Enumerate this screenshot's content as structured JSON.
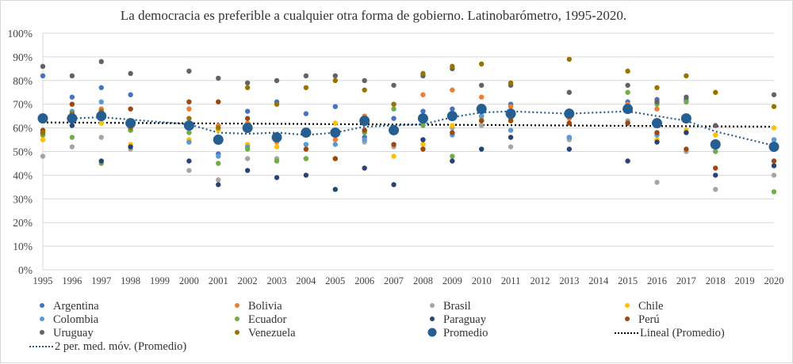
{
  "chart_data": {
    "type": "scatter",
    "title": "La democracia es preferible a cualquier otra forma de gobierno. Latinobarómetro, 1995-2020.",
    "xlabel": "",
    "ylabel": "",
    "ylim": [
      0,
      100
    ],
    "yticks": [
      "0%",
      "10%",
      "20%",
      "30%",
      "40%",
      "50%",
      "60%",
      "70%",
      "80%",
      "90%",
      "100%"
    ],
    "x": [
      "1995",
      "1996",
      "1997",
      "1998",
      "1999",
      "2000",
      "2001",
      "2002",
      "2003",
      "2004",
      "2005",
      "2006",
      "2007",
      "2008",
      "2009",
      "2010",
      "2011",
      "2012",
      "2013",
      "2014",
      "2015",
      "2016",
      "2017",
      "2018",
      "2019",
      "2020"
    ],
    "grid": true,
    "legend_position": "bottom",
    "series": [
      {
        "name": "Argentina",
        "color": "#4472C4",
        "values": [
          82,
          73,
          77,
          74,
          null,
          54,
          49,
          67,
          71,
          66,
          69,
          56,
          64,
          67,
          68,
          65,
          70,
          null,
          56,
          null,
          71,
          72,
          72,
          53,
          null,
          55
        ]
      },
      {
        "name": "Bolivia",
        "color": "#ED7D31",
        "values": [
          57,
          66,
          68,
          59,
          null,
          68,
          61,
          62,
          54,
          53,
          55,
          65,
          59,
          74,
          76,
          73,
          69,
          null,
          64,
          null,
          70,
          68,
          65,
          54,
          null,
          53
        ]
      },
      {
        "name": "Brasil",
        "color": "#A5A5A5",
        "values": [
          48,
          52,
          56,
          51,
          null,
          42,
          38,
          47,
          47,
          47,
          47,
          54,
          52,
          55,
          60,
          61,
          52,
          null,
          55,
          null,
          63,
          37,
          50,
          34,
          null,
          40
        ]
      },
      {
        "name": "Chile",
        "color": "#FFC000",
        "values": [
          55,
          67,
          62,
          53,
          null,
          55,
          59,
          53,
          52,
          51,
          62,
          59,
          48,
          53,
          61,
          64,
          63,
          null,
          65,
          null,
          69,
          55,
          59,
          57,
          null,
          60
        ]
      },
      {
        "name": "Colombia",
        "color": "#5B9BD5",
        "values": [
          58,
          67,
          71,
          59,
          null,
          54,
          48,
          52,
          55,
          53,
          53,
          55,
          60,
          62,
          57,
          65,
          59,
          null,
          56,
          null,
          62,
          57,
          71,
          53,
          null,
          55
        ]
      },
      {
        "name": "Ecuador",
        "color": "#70AD47",
        "values": [
          57,
          56,
          45,
          59,
          null,
          58,
          45,
          51,
          46,
          47,
          47,
          58,
          68,
          61,
          48,
          63,
          64,
          null,
          66,
          null,
          75,
          70,
          71,
          50,
          null,
          33
        ]
      },
      {
        "name": "Paraguay",
        "color": "#264478",
        "values": [
          58,
          61,
          46,
          52,
          null,
          46,
          36,
          42,
          39,
          40,
          34,
          43,
          36,
          55,
          46,
          51,
          56,
          null,
          51,
          null,
          46,
          54,
          58,
          40,
          null,
          44
        ]
      },
      {
        "name": "Perú",
        "color": "#9E480E",
        "values": [
          59,
          70,
          67,
          68,
          null,
          71,
          71,
          64,
          56,
          51,
          47,
          59,
          53,
          51,
          58,
          63,
          63,
          null,
          62,
          null,
          62,
          58,
          51,
          43,
          null,
          46
        ]
      },
      {
        "name": "Uruguay",
        "color": "#636363",
        "values": [
          86,
          82,
          88,
          83,
          null,
          84,
          81,
          79,
          80,
          82,
          82,
          80,
          78,
          82,
          85,
          78,
          78,
          null,
          75,
          null,
          78,
          71,
          73,
          61,
          null,
          74
        ]
      },
      {
        "name": "Venezuela",
        "color": "#997300",
        "values": [
          58,
          66,
          67,
          60,
          null,
          64,
          60,
          77,
          70,
          77,
          80,
          76,
          70,
          83,
          86,
          87,
          79,
          null,
          89,
          null,
          84,
          77,
          82,
          75,
          null,
          69
        ]
      },
      {
        "name": "Promedio",
        "color": "#255E91",
        "values": [
          64,
          64,
          65,
          62,
          null,
          61,
          55,
          60,
          56,
          58,
          58,
          63,
          59,
          64,
          65,
          68,
          66,
          null,
          66,
          null,
          68,
          62,
          64,
          53,
          null,
          52
        ]
      }
    ],
    "trendlines": [
      {
        "name": "2 per. med. móv. (Promedio)",
        "type": "moving_average",
        "period": 2,
        "color": "#255E91",
        "style": "dotted"
      },
      {
        "name": "Lineal (Promedio)",
        "type": "linear",
        "color": "#000000",
        "style": "dotted",
        "start": 62.3,
        "end": 60.5
      }
    ]
  },
  "legend": [
    {
      "label": "Argentina",
      "kind": "dot",
      "color": "#4472C4"
    },
    {
      "label": "Bolivia",
      "kind": "dot",
      "color": "#ED7D31"
    },
    {
      "label": "Brasil",
      "kind": "dot",
      "color": "#A5A5A5"
    },
    {
      "label": "Chile",
      "kind": "dot",
      "color": "#FFC000"
    },
    {
      "label": "Colombia",
      "kind": "dot",
      "color": "#5B9BD5"
    },
    {
      "label": "Ecuador",
      "kind": "dot",
      "color": "#70AD47"
    },
    {
      "label": "Paraguay",
      "kind": "dot",
      "color": "#264478"
    },
    {
      "label": "Perú",
      "kind": "dot",
      "color": "#9E480E"
    },
    {
      "label": "Uruguay",
      "kind": "dot",
      "color": "#636363"
    },
    {
      "label": "Venezuela",
      "kind": "dot",
      "color": "#997300"
    },
    {
      "label": "Promedio",
      "kind": "bigdot",
      "color": "#255E91"
    },
    {
      "label": "Lineal (Promedio)",
      "kind": "line",
      "color": "#000000"
    },
    {
      "label": "2 per. med. móv. (Promedio)",
      "kind": "line",
      "color": "#255E91"
    }
  ]
}
